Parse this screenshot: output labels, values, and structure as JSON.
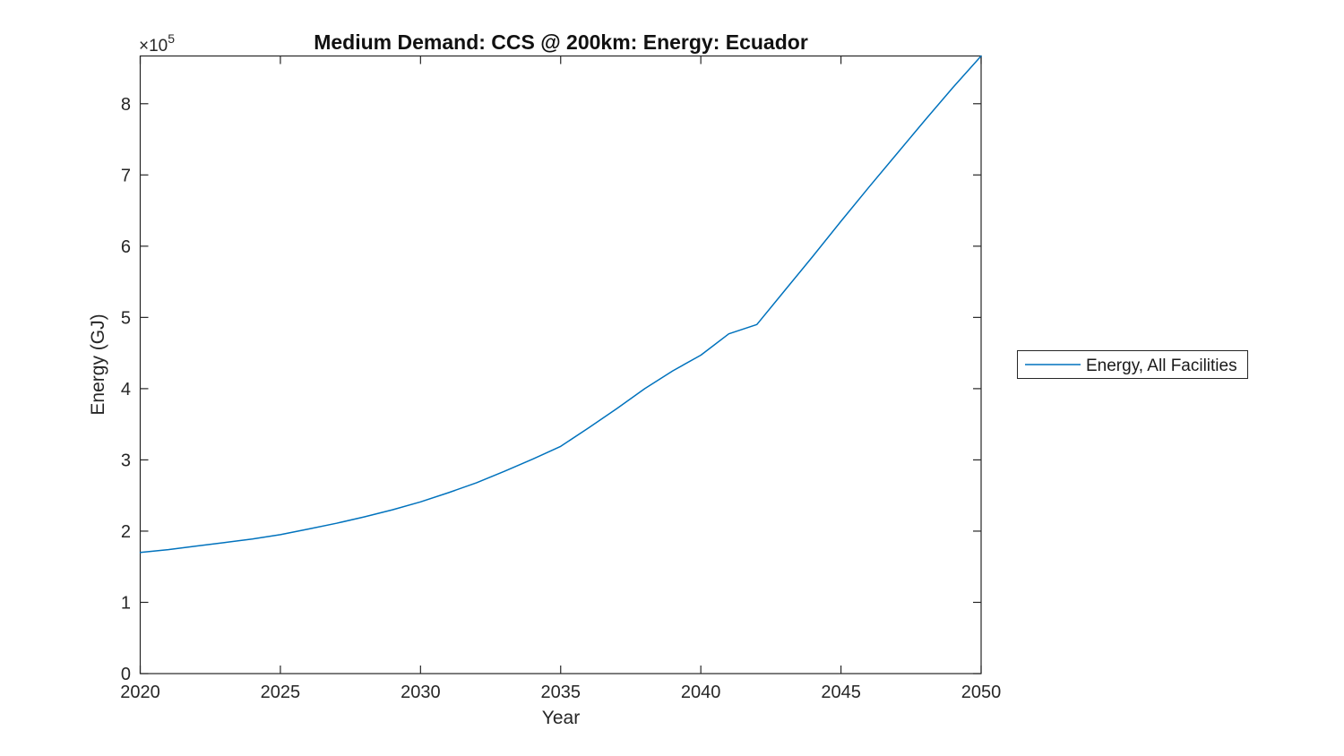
{
  "chart_data": {
    "type": "line",
    "title": "Medium Demand: CCS @ 200km: Energy: Ecuador",
    "xlabel": "Year",
    "ylabel": "Energy (GJ)",
    "y_offset": {
      "base": "×10",
      "exponent": "5"
    },
    "xlim": [
      2020,
      2050
    ],
    "ylim": [
      0,
      867000
    ],
    "grid": false,
    "x_ticks": {
      "values": [
        2020,
        2025,
        2030,
        2035,
        2040,
        2045,
        2050
      ],
      "labels": [
        "2020",
        "2025",
        "2030",
        "2035",
        "2040",
        "2045",
        "2050"
      ]
    },
    "y_ticks": {
      "values": [
        0,
        100000,
        200000,
        300000,
        400000,
        500000,
        600000,
        700000,
        800000
      ],
      "labels": [
        "0",
        "1",
        "2",
        "3",
        "4",
        "5",
        "6",
        "7",
        "8"
      ]
    },
    "x": [
      2020,
      2021,
      2022,
      2023,
      2024,
      2025,
      2026,
      2027,
      2028,
      2029,
      2030,
      2031,
      2032,
      2033,
      2034,
      2035,
      2036,
      2037,
      2038,
      2039,
      2040,
      2041,
      2042,
      2043,
      2044,
      2045,
      2046,
      2047,
      2048,
      2049,
      2050
    ],
    "series": [
      {
        "name": "Energy, All Facilities",
        "color": "#0072BD",
        "values": [
          170000,
          174000,
          179000,
          184000,
          189000,
          195000,
          203000,
          211000,
          220000,
          230000,
          241000,
          254000,
          268000,
          284000,
          301000,
          319000,
          345000,
          372000,
          400000,
          425000,
          447000,
          477000,
          490000,
          538000,
          586000,
          635000,
          683000,
          730000,
          777000,
          823000,
          867000
        ]
      }
    ],
    "legend": {
      "position": "right-outside",
      "border_color": "#262626",
      "background": "#ffffff",
      "label": "Energy, All Facilities"
    },
    "axis_color": "#262626",
    "plot_background": "#ffffff"
  }
}
